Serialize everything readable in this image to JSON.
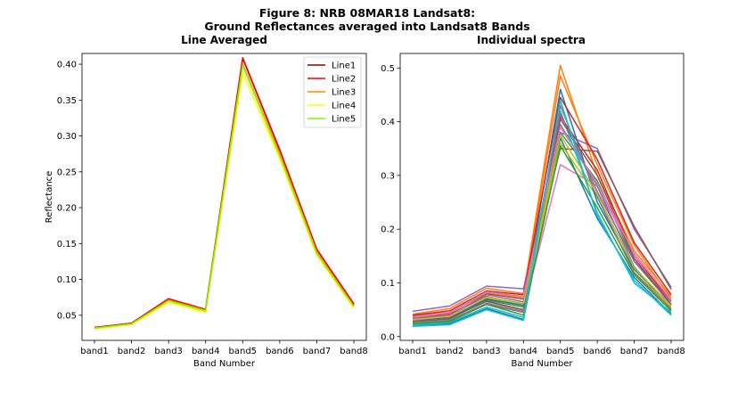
{
  "figure": {
    "title_line1": "Figure 8: NRB 08MAR18  Landsat8:",
    "title_line2": "Ground Reflectances averaged into Landsat8 Bands"
  },
  "chart_data": [
    {
      "type": "line",
      "title": "Line Averaged",
      "xlabel": "Band Number",
      "ylabel": "Reflectance",
      "categories": [
        "band1",
        "band2",
        "band3",
        "band4",
        "band5",
        "band6",
        "band7",
        "band8"
      ],
      "ylim": [
        0.015,
        0.415
      ],
      "yticks": [
        0.05,
        0.1,
        0.15,
        0.2,
        0.25,
        0.3,
        0.35,
        0.4
      ],
      "ytick_labels": [
        "0.05",
        "0.10",
        "0.15",
        "0.20",
        "0.25",
        "0.30",
        "0.35",
        "0.40"
      ],
      "legend_position": "top-right",
      "grid": false,
      "series": [
        {
          "name": "Line1",
          "color": "#8b0000",
          "values": [
            0.033,
            0.039,
            0.073,
            0.058,
            0.408,
            0.28,
            0.142,
            0.065
          ]
        },
        {
          "name": "Line2",
          "color": "#ff0000",
          "values": [
            0.033,
            0.039,
            0.073,
            0.058,
            0.409,
            0.281,
            0.142,
            0.066
          ]
        },
        {
          "name": "Line3",
          "color": "#ff8c00",
          "values": [
            0.032,
            0.038,
            0.071,
            0.057,
            0.4,
            0.275,
            0.138,
            0.063
          ]
        },
        {
          "name": "Line4",
          "color": "#ffff00",
          "values": [
            0.031,
            0.037,
            0.068,
            0.054,
            0.388,
            0.268,
            0.134,
            0.06
          ]
        },
        {
          "name": "Line5",
          "color": "#7cfc00",
          "values": [
            0.032,
            0.038,
            0.07,
            0.056,
            0.398,
            0.272,
            0.136,
            0.062
          ]
        }
      ]
    },
    {
      "type": "line",
      "title": "Individual spectra",
      "xlabel": "Band Number",
      "ylabel": "",
      "categories": [
        "band1",
        "band2",
        "band3",
        "band4",
        "band5",
        "band6",
        "band7",
        "band8"
      ],
      "ylim": [
        -0.007,
        0.527
      ],
      "yticks": [
        0.0,
        0.1,
        0.2,
        0.3,
        0.4,
        0.5
      ],
      "ytick_labels": [
        "0.0",
        "0.1",
        "0.2",
        "0.3",
        "0.4",
        "0.5"
      ],
      "grid": false,
      "series": [
        {
          "color": "#1f77b4",
          "values": [
            0.02,
            0.024,
            0.052,
            0.032,
            0.37,
            0.22,
            0.11,
            0.042
          ]
        },
        {
          "color": "#ff7f0e",
          "values": [
            0.042,
            0.052,
            0.09,
            0.08,
            0.505,
            0.3,
            0.16,
            0.075
          ]
        },
        {
          "color": "#2ca02c",
          "values": [
            0.028,
            0.033,
            0.068,
            0.055,
            0.38,
            0.29,
            0.14,
            0.06
          ]
        },
        {
          "color": "#d62728",
          "values": [
            0.035,
            0.042,
            0.075,
            0.06,
            0.41,
            0.31,
            0.15,
            0.065
          ]
        },
        {
          "color": "#9467bd",
          "values": [
            0.047,
            0.057,
            0.094,
            0.089,
            0.38,
            0.35,
            0.2,
            0.092
          ]
        },
        {
          "color": "#8c564b",
          "values": [
            0.038,
            0.045,
            0.08,
            0.07,
            0.35,
            0.345,
            0.205,
            0.088
          ]
        },
        {
          "color": "#e377c2",
          "values": [
            0.03,
            0.036,
            0.065,
            0.048,
            0.32,
            0.28,
            0.15,
            0.055
          ]
        },
        {
          "color": "#7f7f7f",
          "values": [
            0.025,
            0.03,
            0.06,
            0.045,
            0.395,
            0.28,
            0.13,
            0.05
          ]
        },
        {
          "color": "#bcbd22",
          "values": [
            0.033,
            0.04,
            0.072,
            0.06,
            0.36,
            0.26,
            0.12,
            0.055
          ]
        },
        {
          "color": "#17becf",
          "values": [
            0.022,
            0.026,
            0.055,
            0.036,
            0.42,
            0.23,
            0.1,
            0.045
          ]
        },
        {
          "color": "#1f77b4",
          "values": [
            0.03,
            0.035,
            0.07,
            0.058,
            0.46,
            0.25,
            0.125,
            0.058
          ]
        },
        {
          "color": "#ff7f0e",
          "values": [
            0.036,
            0.044,
            0.082,
            0.072,
            0.485,
            0.32,
            0.17,
            0.07
          ]
        },
        {
          "color": "#2ca02c",
          "values": [
            0.024,
            0.028,
            0.06,
            0.04,
            0.355,
            0.24,
            0.115,
            0.048
          ]
        },
        {
          "color": "#d62728",
          "values": [
            0.04,
            0.048,
            0.085,
            0.078,
            0.445,
            0.33,
            0.175,
            0.078
          ]
        },
        {
          "color": "#9467bd",
          "values": [
            0.034,
            0.04,
            0.078,
            0.065,
            0.415,
            0.27,
            0.14,
            0.065
          ]
        },
        {
          "color": "#8c564b",
          "values": [
            0.028,
            0.034,
            0.066,
            0.05,
            0.405,
            0.3,
            0.145,
            0.06
          ]
        },
        {
          "color": "#e377c2",
          "values": [
            0.037,
            0.045,
            0.083,
            0.075,
            0.39,
            0.285,
            0.155,
            0.068
          ]
        },
        {
          "color": "#7f7f7f",
          "values": [
            0.026,
            0.031,
            0.062,
            0.046,
            0.43,
            0.26,
            0.118,
            0.052
          ]
        },
        {
          "color": "#bcbd22",
          "values": [
            0.031,
            0.038,
            0.074,
            0.062,
            0.375,
            0.265,
            0.128,
            0.057
          ]
        },
        {
          "color": "#17becf",
          "values": [
            0.019,
            0.022,
            0.05,
            0.03,
            0.44,
            0.225,
            0.105,
            0.04
          ]
        }
      ]
    }
  ]
}
